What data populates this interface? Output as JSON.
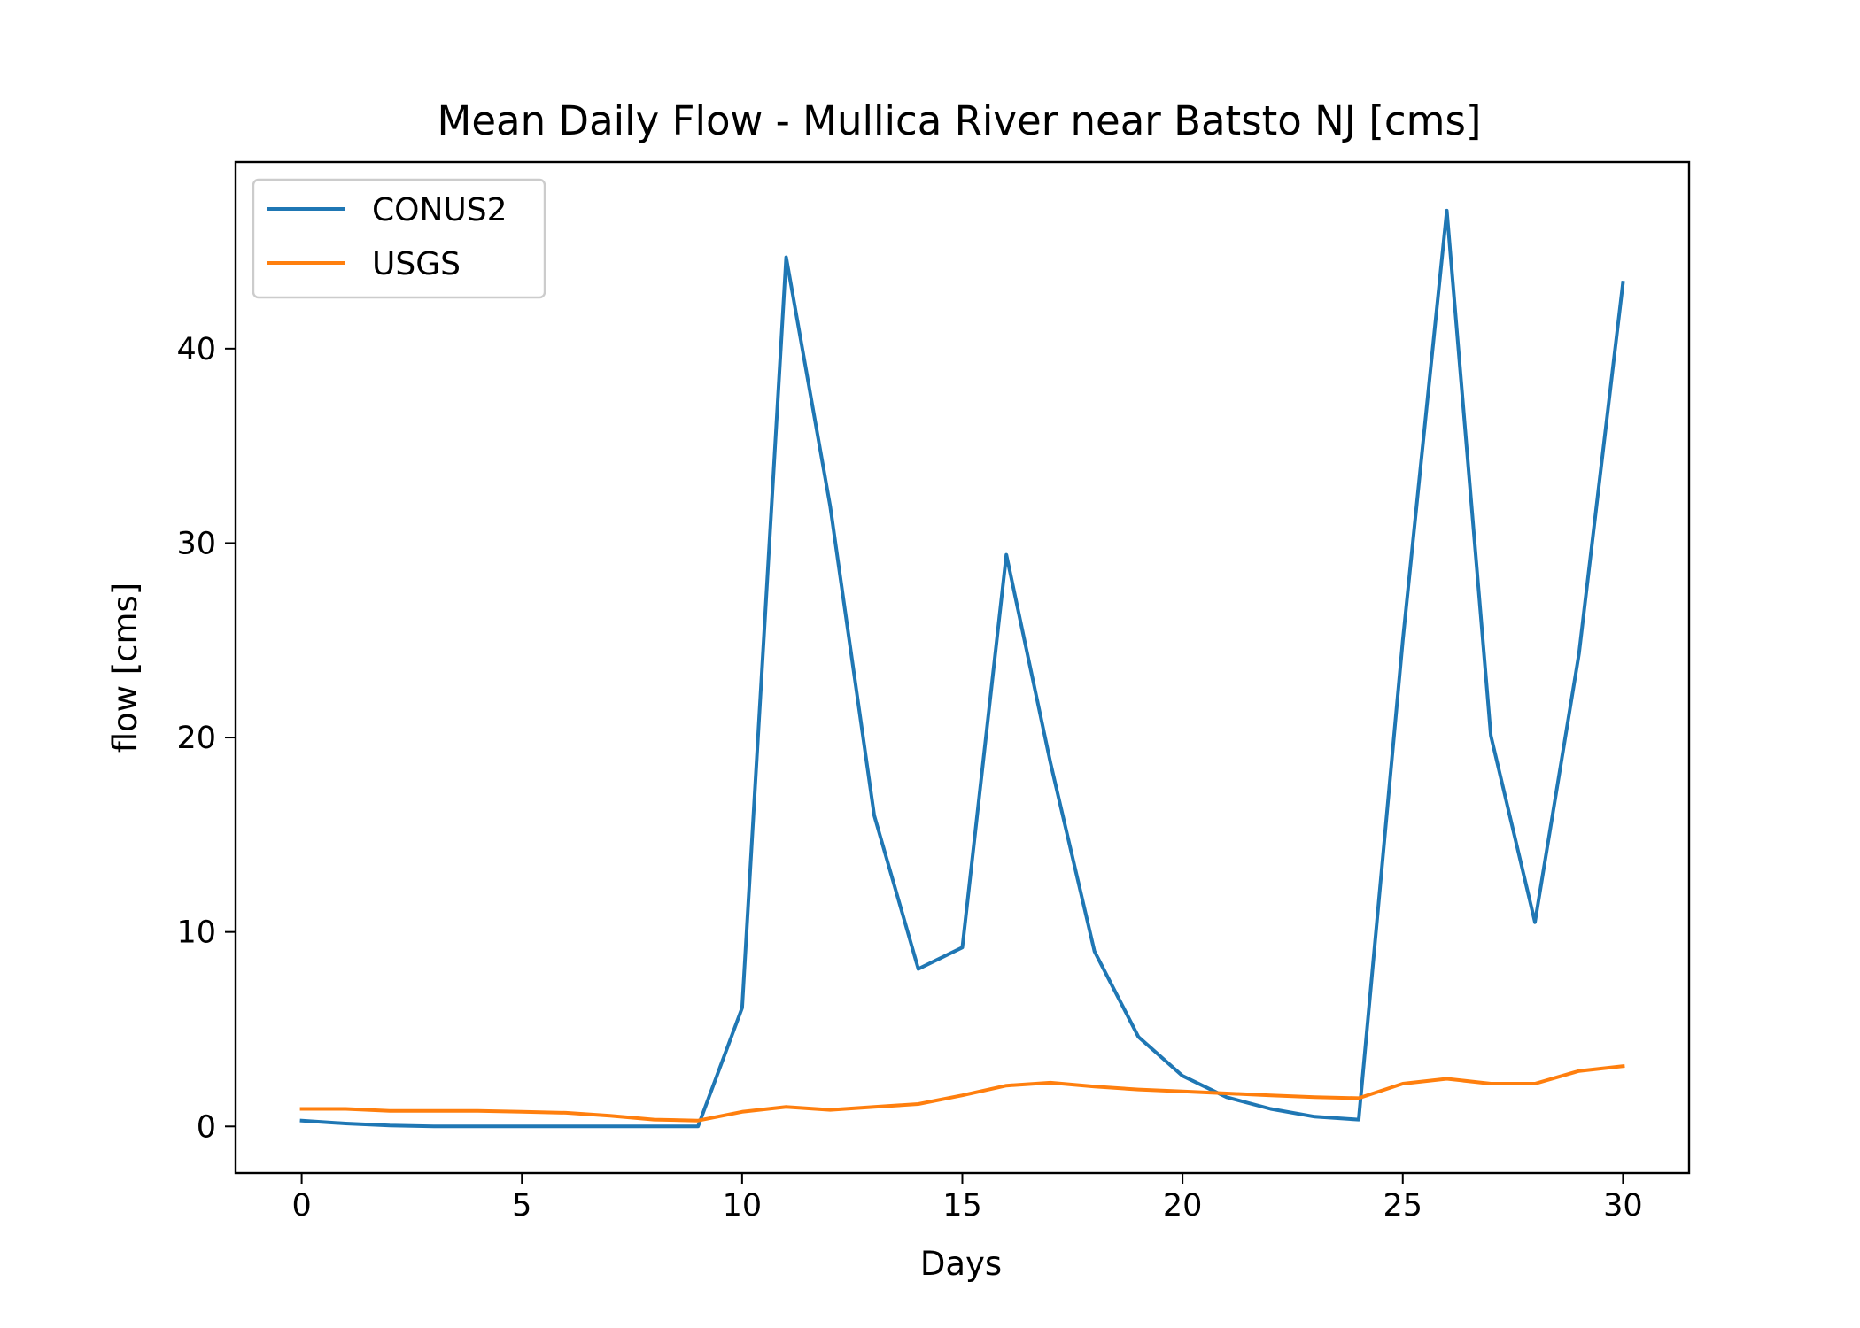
{
  "chart_data": {
    "type": "line",
    "title": "Mean Daily Flow - Mullica River near Batsto NJ [cms]",
    "xlabel": "Days",
    "ylabel": "flow [cms]",
    "xlim": [
      -1.5,
      31.5
    ],
    "ylim": [
      -2.4,
      49.6
    ],
    "xticks": [
      0,
      5,
      10,
      15,
      20,
      25,
      30
    ],
    "yticks": [
      0,
      10,
      20,
      30,
      40
    ],
    "grid": false,
    "legend": "upper-left",
    "x": [
      0,
      1,
      2,
      3,
      4,
      5,
      6,
      7,
      8,
      9,
      10,
      11,
      12,
      13,
      14,
      15,
      16,
      17,
      18,
      19,
      20,
      21,
      22,
      23,
      24,
      25,
      26,
      27,
      28,
      29,
      30
    ],
    "series": [
      {
        "name": "CONUS2",
        "color": "#1f77b4",
        "values": [
          0.3,
          0.15,
          0.05,
          0.0,
          0.0,
          0.0,
          0.0,
          0.0,
          0.0,
          0.0,
          6.1,
          44.7,
          31.9,
          16.0,
          8.1,
          9.2,
          29.4,
          18.7,
          9.0,
          4.6,
          2.6,
          1.5,
          0.9,
          0.5,
          0.35,
          25.0,
          47.1,
          20.1,
          10.5,
          24.3,
          43.4
        ]
      },
      {
        "name": "USGS",
        "color": "#ff7f0e",
        "values": [
          0.9,
          0.9,
          0.8,
          0.8,
          0.8,
          0.75,
          0.7,
          0.55,
          0.35,
          0.3,
          0.75,
          1.0,
          0.85,
          1.0,
          1.15,
          1.6,
          2.1,
          2.25,
          2.05,
          1.9,
          1.8,
          1.7,
          1.6,
          1.5,
          1.45,
          2.2,
          2.45,
          2.2,
          2.2,
          2.85,
          3.1
        ]
      }
    ]
  }
}
